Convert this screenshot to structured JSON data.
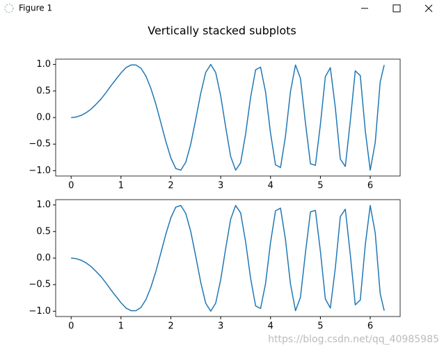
{
  "window": {
    "title": "Figure 1"
  },
  "title": "Vertically stacked subplots",
  "watermark": "https://blog.csdn.net/qq_40985985",
  "chart_data": [
    {
      "type": "line",
      "color": "#1f77b4",
      "x": [
        0,
        0.1,
        0.2,
        0.3,
        0.4,
        0.5,
        0.6,
        0.7,
        0.8,
        0.9,
        1.0,
        1.1,
        1.2,
        1.3,
        1.4,
        1.5,
        1.6,
        1.7,
        1.8,
        1.9,
        2.0,
        2.1,
        2.2,
        2.3,
        2.4,
        2.5,
        2.6,
        2.7,
        2.8,
        2.9,
        3.0,
        3.1,
        3.2,
        3.3,
        3.4,
        3.5,
        3.6,
        3.7,
        3.8,
        3.9,
        4.0,
        4.1,
        4.2,
        4.3,
        4.4,
        4.5,
        4.6,
        4.7,
        4.8,
        4.9,
        5.0,
        5.1,
        5.2,
        5.3,
        5.4,
        5.5,
        5.6,
        5.7,
        5.8,
        5.9,
        6.0,
        6.1,
        6.2,
        6.28
      ],
      "values": [
        0,
        0.01,
        0.04,
        0.09,
        0.16,
        0.25,
        0.35,
        0.47,
        0.6,
        0.72,
        0.84,
        0.94,
        0.99,
        0.99,
        0.93,
        0.78,
        0.55,
        0.25,
        -0.1,
        -0.45,
        -0.76,
        -0.96,
        -0.99,
        -0.84,
        -0.5,
        -0.03,
        0.46,
        0.85,
        1.0,
        0.85,
        0.41,
        -0.18,
        -0.73,
        -0.99,
        -0.85,
        -0.31,
        0.38,
        0.9,
        0.95,
        0.48,
        -0.29,
        -0.89,
        -0.94,
        -0.35,
        0.49,
        0.99,
        0.74,
        -0.1,
        -0.87,
        -0.9,
        -0.13,
        0.77,
        0.94,
        0.18,
        -0.78,
        -0.92,
        -0.06,
        0.88,
        0.79,
        -0.25,
        -0.99,
        -0.47,
        0.67,
        0.99
      ],
      "xlim": [
        -0.31,
        6.6
      ],
      "ylim": [
        -1.1,
        1.1
      ],
      "xticks": [
        0,
        1,
        2,
        3,
        4,
        5,
        6
      ],
      "yticks": [
        {
          "value": -1,
          "label": "−1.0"
        },
        {
          "value": -0.5,
          "label": "−0.5"
        },
        {
          "value": 0,
          "label": "0.0"
        },
        {
          "value": 0.5,
          "label": "0.5"
        },
        {
          "value": 1,
          "label": "1.0"
        }
      ]
    },
    {
      "type": "line",
      "color": "#1f77b4",
      "x": [
        0,
        0.1,
        0.2,
        0.3,
        0.4,
        0.5,
        0.6,
        0.7,
        0.8,
        0.9,
        1.0,
        1.1,
        1.2,
        1.3,
        1.4,
        1.5,
        1.6,
        1.7,
        1.8,
        1.9,
        2.0,
        2.1,
        2.2,
        2.3,
        2.4,
        2.5,
        2.6,
        2.7,
        2.8,
        2.9,
        3.0,
        3.1,
        3.2,
        3.3,
        3.4,
        3.5,
        3.6,
        3.7,
        3.8,
        3.9,
        4.0,
        4.1,
        4.2,
        4.3,
        4.4,
        4.5,
        4.6,
        4.7,
        4.8,
        4.9,
        5.0,
        5.1,
        5.2,
        5.3,
        5.4,
        5.5,
        5.6,
        5.7,
        5.8,
        5.9,
        6.0,
        6.1,
        6.2,
        6.28
      ],
      "values": [
        0,
        -0.01,
        -0.04,
        -0.09,
        -0.16,
        -0.25,
        -0.35,
        -0.47,
        -0.6,
        -0.72,
        -0.84,
        -0.94,
        -0.99,
        -0.99,
        -0.93,
        -0.78,
        -0.55,
        -0.25,
        0.1,
        0.45,
        0.76,
        0.96,
        0.99,
        0.84,
        0.5,
        0.03,
        -0.46,
        -0.85,
        -1.0,
        -0.85,
        -0.41,
        0.18,
        0.73,
        0.99,
        0.85,
        0.31,
        -0.38,
        -0.9,
        -0.95,
        -0.48,
        0.29,
        0.89,
        0.94,
        0.35,
        -0.49,
        -0.99,
        -0.74,
        0.1,
        0.87,
        0.9,
        0.13,
        -0.77,
        -0.94,
        -0.18,
        0.78,
        0.92,
        0.06,
        -0.88,
        -0.79,
        0.25,
        0.99,
        0.47,
        -0.67,
        -0.99
      ],
      "xlim": [
        -0.31,
        6.6
      ],
      "ylim": [
        -1.1,
        1.1
      ],
      "xticks": [
        0,
        1,
        2,
        3,
        4,
        5,
        6
      ],
      "yticks": [
        {
          "value": -1,
          "label": "−1.0"
        },
        {
          "value": -0.5,
          "label": "−0.5"
        },
        {
          "value": 0,
          "label": "0.0"
        },
        {
          "value": 0.5,
          "label": "0.5"
        },
        {
          "value": 1,
          "label": "1.0"
        }
      ]
    }
  ]
}
